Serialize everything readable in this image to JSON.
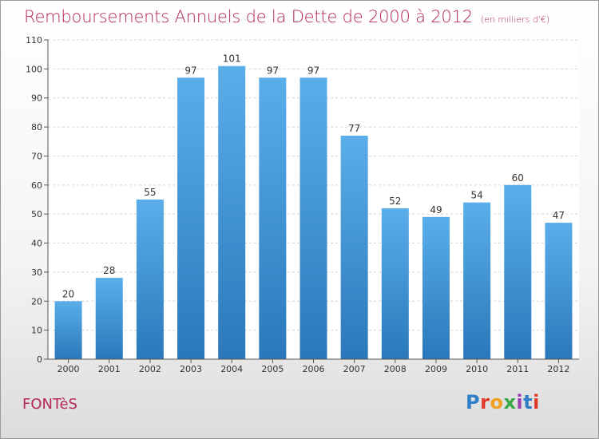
{
  "header": {
    "title": "Remboursements Annuels de la Dette de 2000 à 2012",
    "subtitle": "(en milliers d'€)"
  },
  "footer": {
    "commune": "FONTèS",
    "logo_text": "Proxiti",
    "logo_colors": [
      "#2e7fc8",
      "#e0382b",
      "#f0a020",
      "#3aa845",
      "#9b3fb0",
      "#2e7fc8",
      "#e0382b"
    ]
  },
  "colors": {
    "bar_top": "#5aaeea",
    "bar_bottom": "#2a78bb",
    "title": "#b5275a"
  },
  "chart_data": {
    "type": "bar",
    "categories": [
      "2000",
      "2001",
      "2002",
      "2003",
      "2004",
      "2005",
      "2006",
      "2007",
      "2008",
      "2009",
      "2010",
      "2011",
      "2012"
    ],
    "values": [
      20,
      28,
      55,
      97,
      101,
      97,
      97,
      77,
      52,
      49,
      54,
      60,
      47
    ],
    "ylim": [
      0,
      110
    ],
    "yticks": [
      0,
      10,
      20,
      30,
      40,
      50,
      60,
      70,
      80,
      90,
      100,
      110
    ],
    "grid": true
  }
}
